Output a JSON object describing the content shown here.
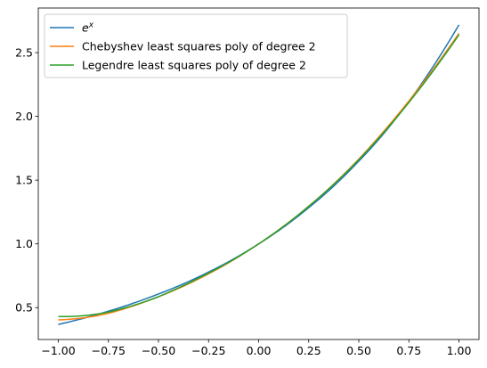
{
  "chart_data": {
    "type": "line",
    "title": "",
    "xlabel": "",
    "ylabel": "",
    "xlim": [
      -1.1,
      1.1
    ],
    "ylim": [
      0.25,
      2.85
    ],
    "xticks": [
      -1.0,
      -0.75,
      -0.5,
      -0.25,
      0.0,
      0.25,
      0.5,
      0.75,
      1.0
    ],
    "xtick_labels": [
      "−1.00",
      "−0.75",
      "−0.50",
      "−0.25",
      "0.00",
      "0.25",
      "0.50",
      "0.75",
      "1.00"
    ],
    "yticks": [
      0.5,
      1.0,
      1.5,
      2.0,
      2.5
    ],
    "ytick_labels": [
      "0.5",
      "1.0",
      "1.5",
      "2.0",
      "2.5"
    ],
    "grid": false,
    "legend_position": "top-left",
    "x": [
      -1.0,
      -0.75,
      -0.5,
      -0.25,
      0.0,
      0.25,
      0.5,
      0.75,
      1.0
    ],
    "series": [
      {
        "name": "e^x",
        "label_base": "e",
        "label_sup": "x",
        "color": "#1f77b4",
        "values": [
          0.368,
          0.472,
          0.607,
          0.779,
          1.0,
          1.284,
          1.649,
          2.117,
          2.718
        ]
      },
      {
        "name": "Chebyshev least squares poly of degree 2",
        "color": "#ff7f0e",
        "values": [
          0.404,
          0.455,
          0.585,
          0.765,
          1.0,
          1.296,
          1.665,
          2.121,
          2.651
        ]
      },
      {
        "name": "Legendre least squares poly of degree 2",
        "color": "#2ca02c",
        "values": [
          0.43,
          0.465,
          0.586,
          0.771,
          1.0,
          1.294,
          1.66,
          2.109,
          2.64
        ]
      }
    ]
  }
}
